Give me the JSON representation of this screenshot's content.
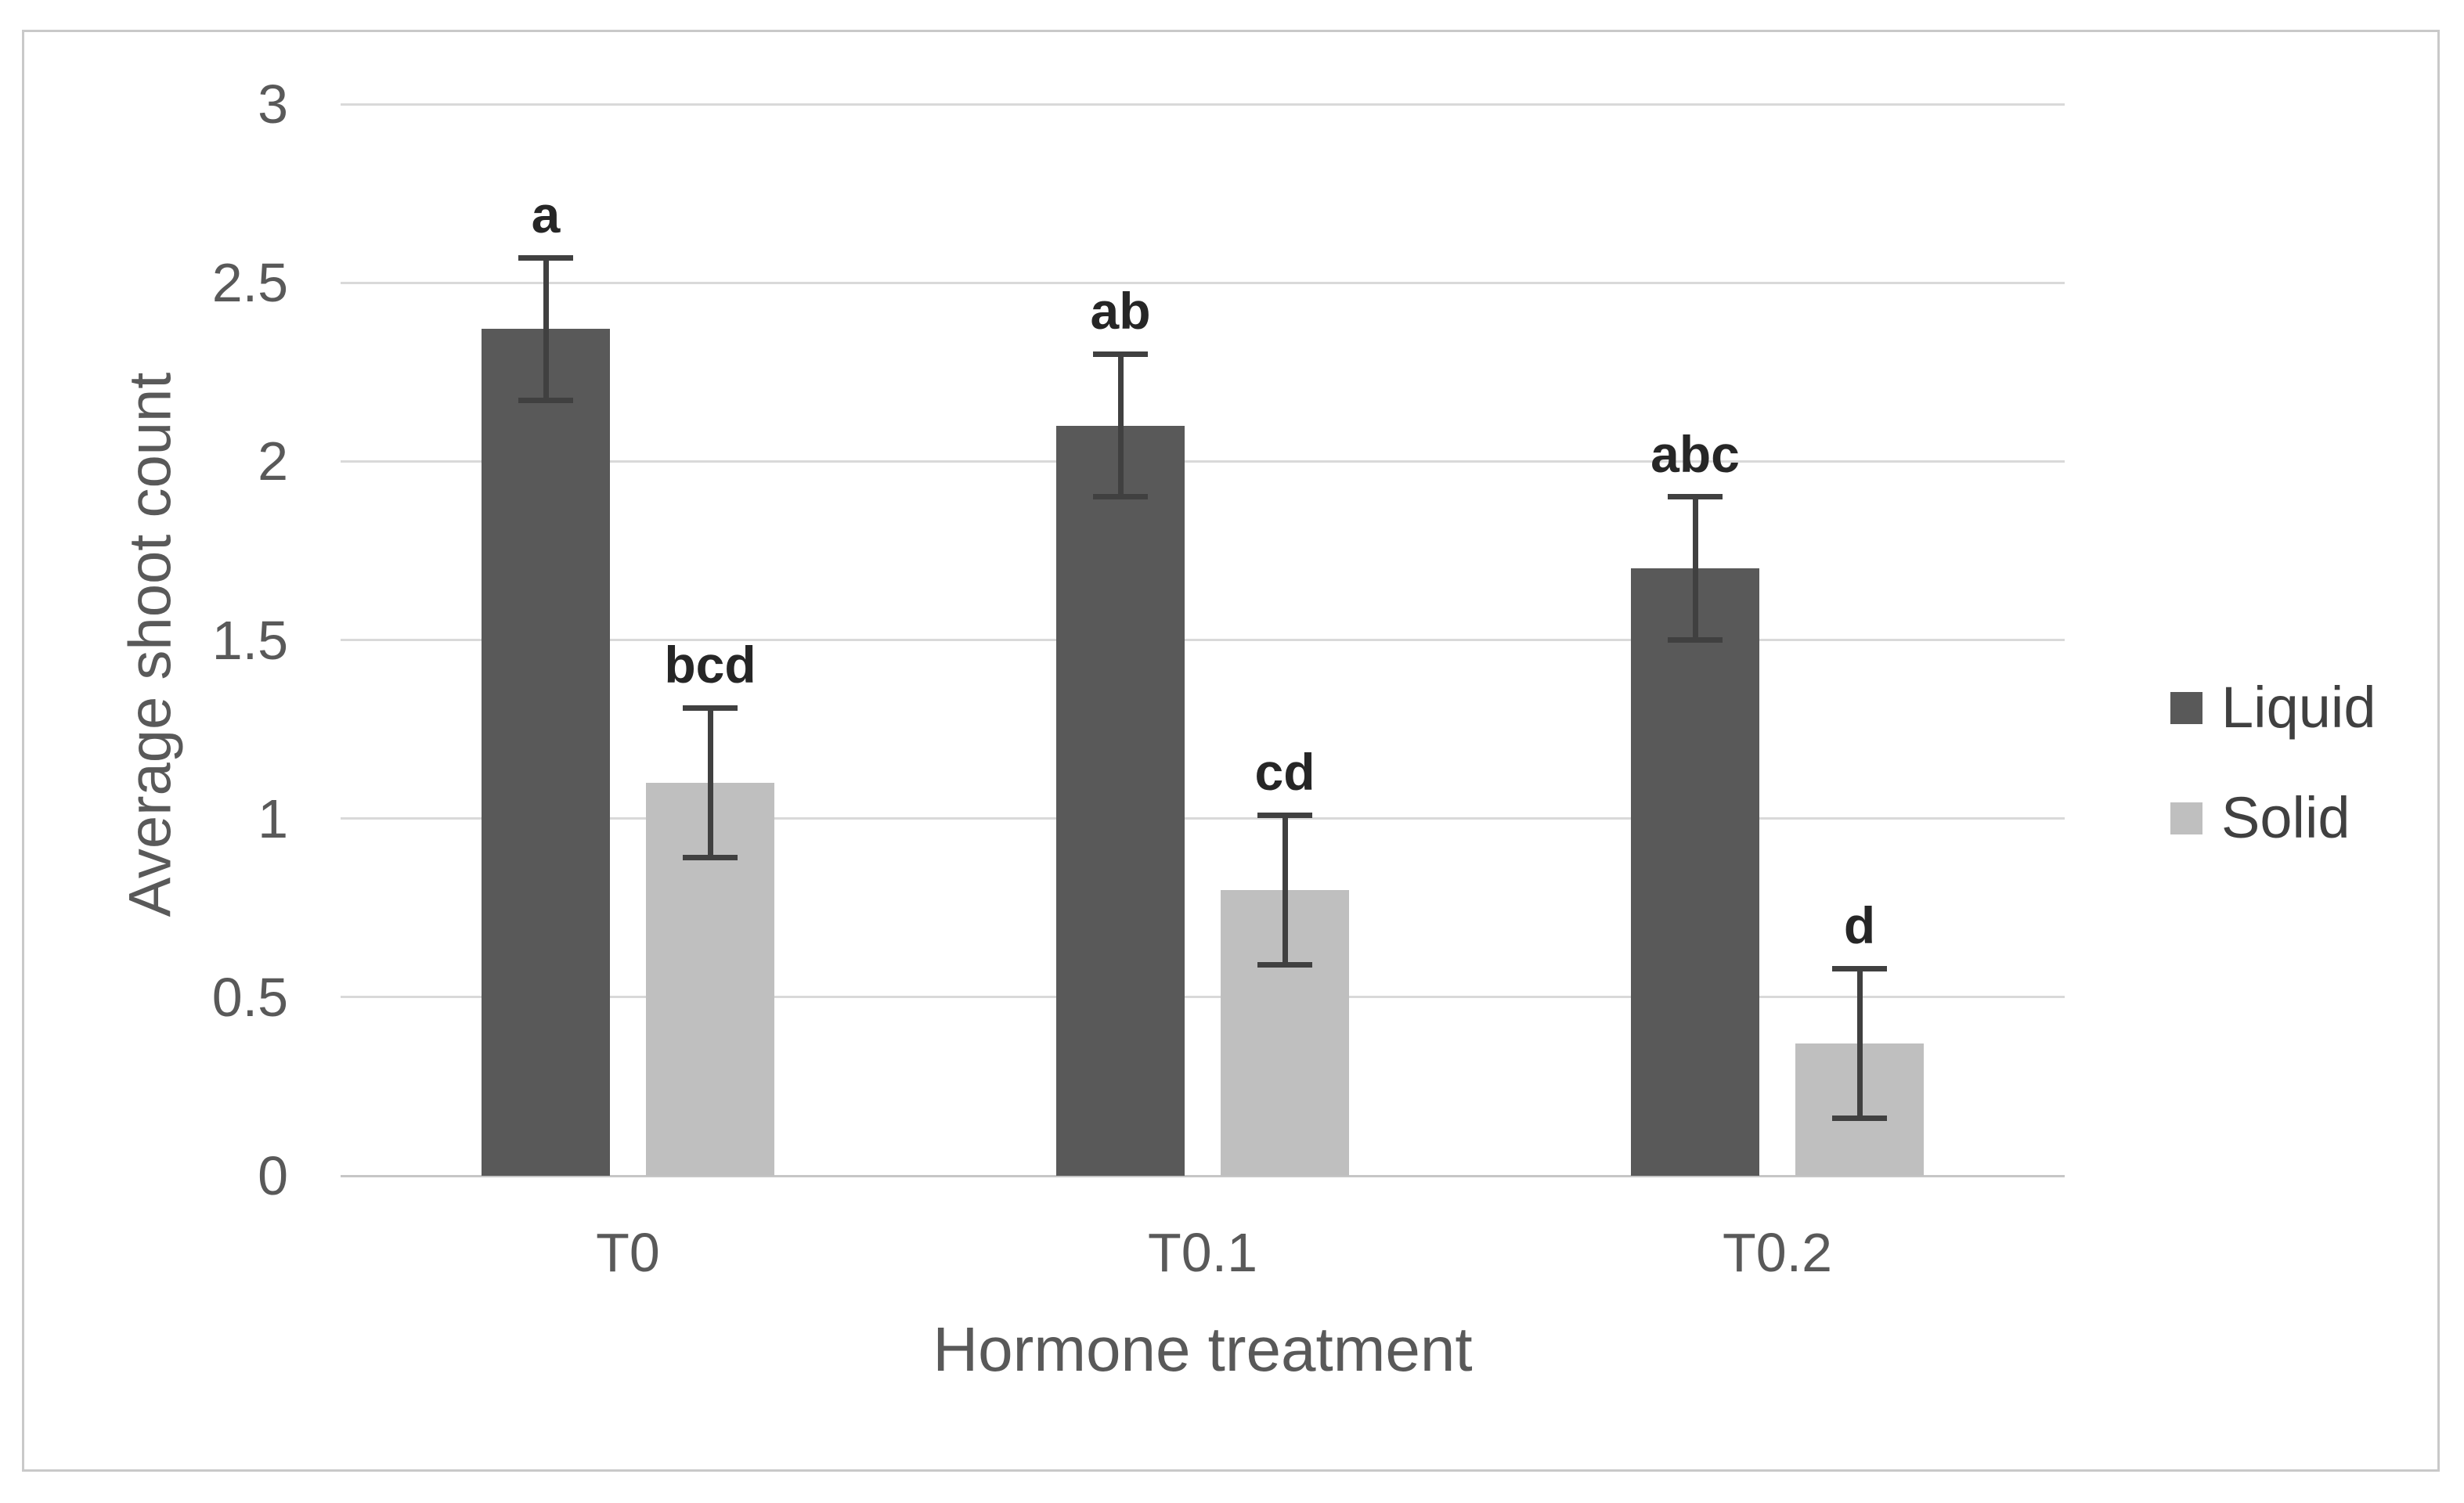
{
  "chart_data": {
    "type": "bar",
    "title": "",
    "categories": [
      "T0",
      "T0.1",
      "T0.2"
    ],
    "series": [
      {
        "name": "Liquid",
        "color": "#595959",
        "values": [
          2.37,
          2.1,
          1.7
        ],
        "errors": [
          0.2,
          0.2,
          0.2
        ],
        "point_labels": [
          "a",
          "ab",
          "abc"
        ]
      },
      {
        "name": "Solid",
        "color": "#bfbfbf",
        "values": [
          1.1,
          0.8,
          0.37
        ],
        "errors": [
          0.21,
          0.21,
          0.21
        ],
        "point_labels": [
          "bcd",
          "cd",
          "d"
        ]
      }
    ],
    "xlabel": "Hormone treatment",
    "ylabel": "Average shoot count",
    "ylim": [
      0,
      3
    ],
    "yticks": [
      "0",
      "0.5",
      "1",
      "1.5",
      "2",
      "2.5",
      "3"
    ],
    "grid": true,
    "legend_position": "right"
  },
  "style": {
    "gridline_color": "#d9d9d9",
    "baseline_color": "#c6c6c6",
    "error_bar_color": "#404040",
    "axis_text_color": "#595959",
    "letter_color": "#262626",
    "legend_text_color": "#404040",
    "border_color": "#c9c9c9",
    "background": "#ffffff"
  }
}
